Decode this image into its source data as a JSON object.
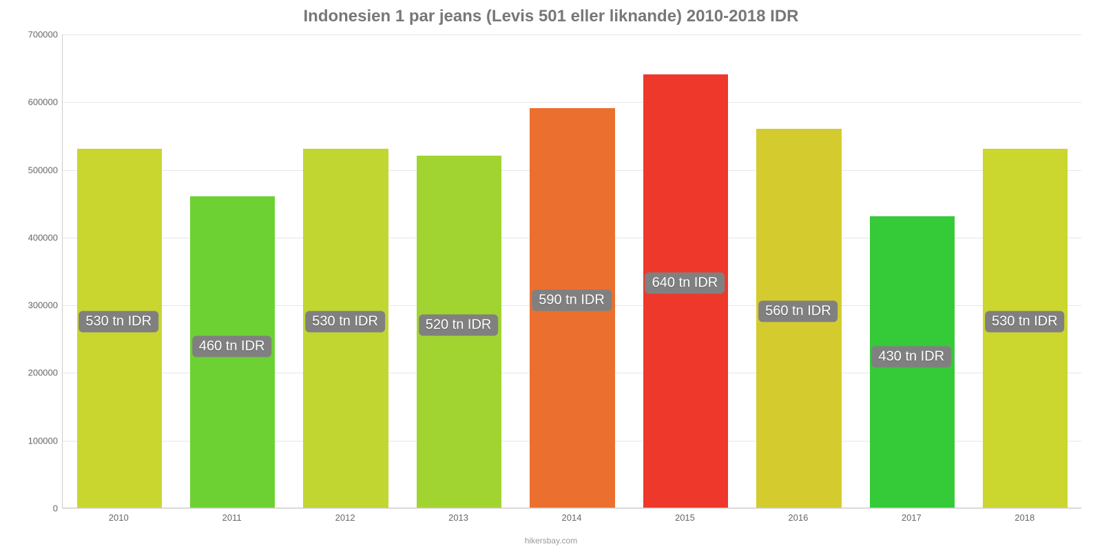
{
  "chart": {
    "type": "bar",
    "title": "Indonesien 1 par jeans (Levis 501 eller liknande) 2010-2018 IDR",
    "title_fontsize": 24,
    "title_color": "#777777",
    "attribution": "hikersbay.com",
    "attribution_color": "#999999",
    "background_color": "#ffffff",
    "grid_color": "#e6e6e6",
    "axis_color": "#cccccc",
    "tick_color": "#666666",
    "tick_fontsize": 13,
    "ylim": [
      0,
      700000
    ],
    "ytick_step": 100000,
    "yticks": [
      0,
      100000,
      200000,
      300000,
      400000,
      500000,
      600000,
      700000
    ],
    "categories": [
      "2010",
      "2011",
      "2012",
      "2013",
      "2014",
      "2015",
      "2016",
      "2017",
      "2018"
    ],
    "values": [
      530000,
      460000,
      530000,
      520000,
      590000,
      640000,
      560000,
      430000,
      530000
    ],
    "bar_colors": [
      "#c9d62f",
      "#6dd134",
      "#c1d630",
      "#a2d431",
      "#eb6f2e",
      "#ee382c",
      "#d4cc2e",
      "#35ca38",
      "#cbd62f"
    ],
    "bar_labels": [
      "530 tn IDR",
      "460 tn IDR",
      "530 tn IDR",
      "520 tn IDR",
      "590 tn IDR",
      "640 tn IDR",
      "560 tn IDR",
      "430 tn IDR",
      "530 tn IDR"
    ],
    "bar_label_bg": "#808080",
    "bar_label_color": "#ffffff",
    "bar_label_fontsize": 20,
    "bar_width_ratio": 0.75
  }
}
